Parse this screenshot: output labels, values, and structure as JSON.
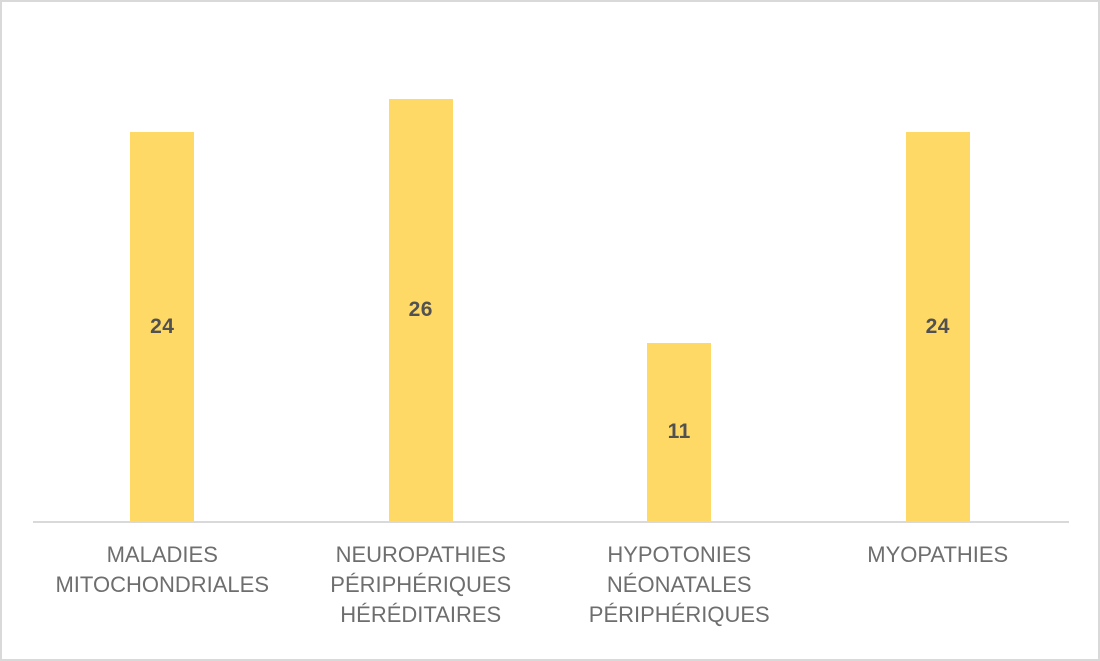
{
  "chart_data": {
    "type": "bar",
    "title": "",
    "xlabel": "",
    "ylabel": "",
    "categories": [
      "MALADIES MITOCHONDRIALES",
      "NEUROPATHIES PÉRIPHÉRIQUES HÉRÉDITAIRES",
      "HYPOTONIES NÉONATALES PÉRIPHÉRIQUES",
      "MYOPATHIES"
    ],
    "category_lines": [
      [
        "MALADIES",
        "MITOCHONDRIALES"
      ],
      [
        "NEUROPATHIES",
        "PÉRIPHÉRIQUES",
        "HÉRÉDITAIRES"
      ],
      [
        "HYPOTONIES",
        "NÉONATALES",
        "PÉRIPHÉRIQUES"
      ],
      [
        "MYOPATHIES"
      ]
    ],
    "values": [
      24,
      26,
      11,
      24
    ],
    "data_labels": [
      "24",
      "26",
      "11",
      "24"
    ],
    "ylim": [
      0,
      32
    ],
    "grid": false,
    "legend": "none",
    "data_label_position": "inside-center",
    "colors": {
      "bar_fill": "#FFD966",
      "data_label": "#515151",
      "tick_label": "#6E6E6E",
      "axis_line": "#D9D9D9",
      "frame_border": "#D9D9D9",
      "background": "#FFFFFF"
    }
  }
}
